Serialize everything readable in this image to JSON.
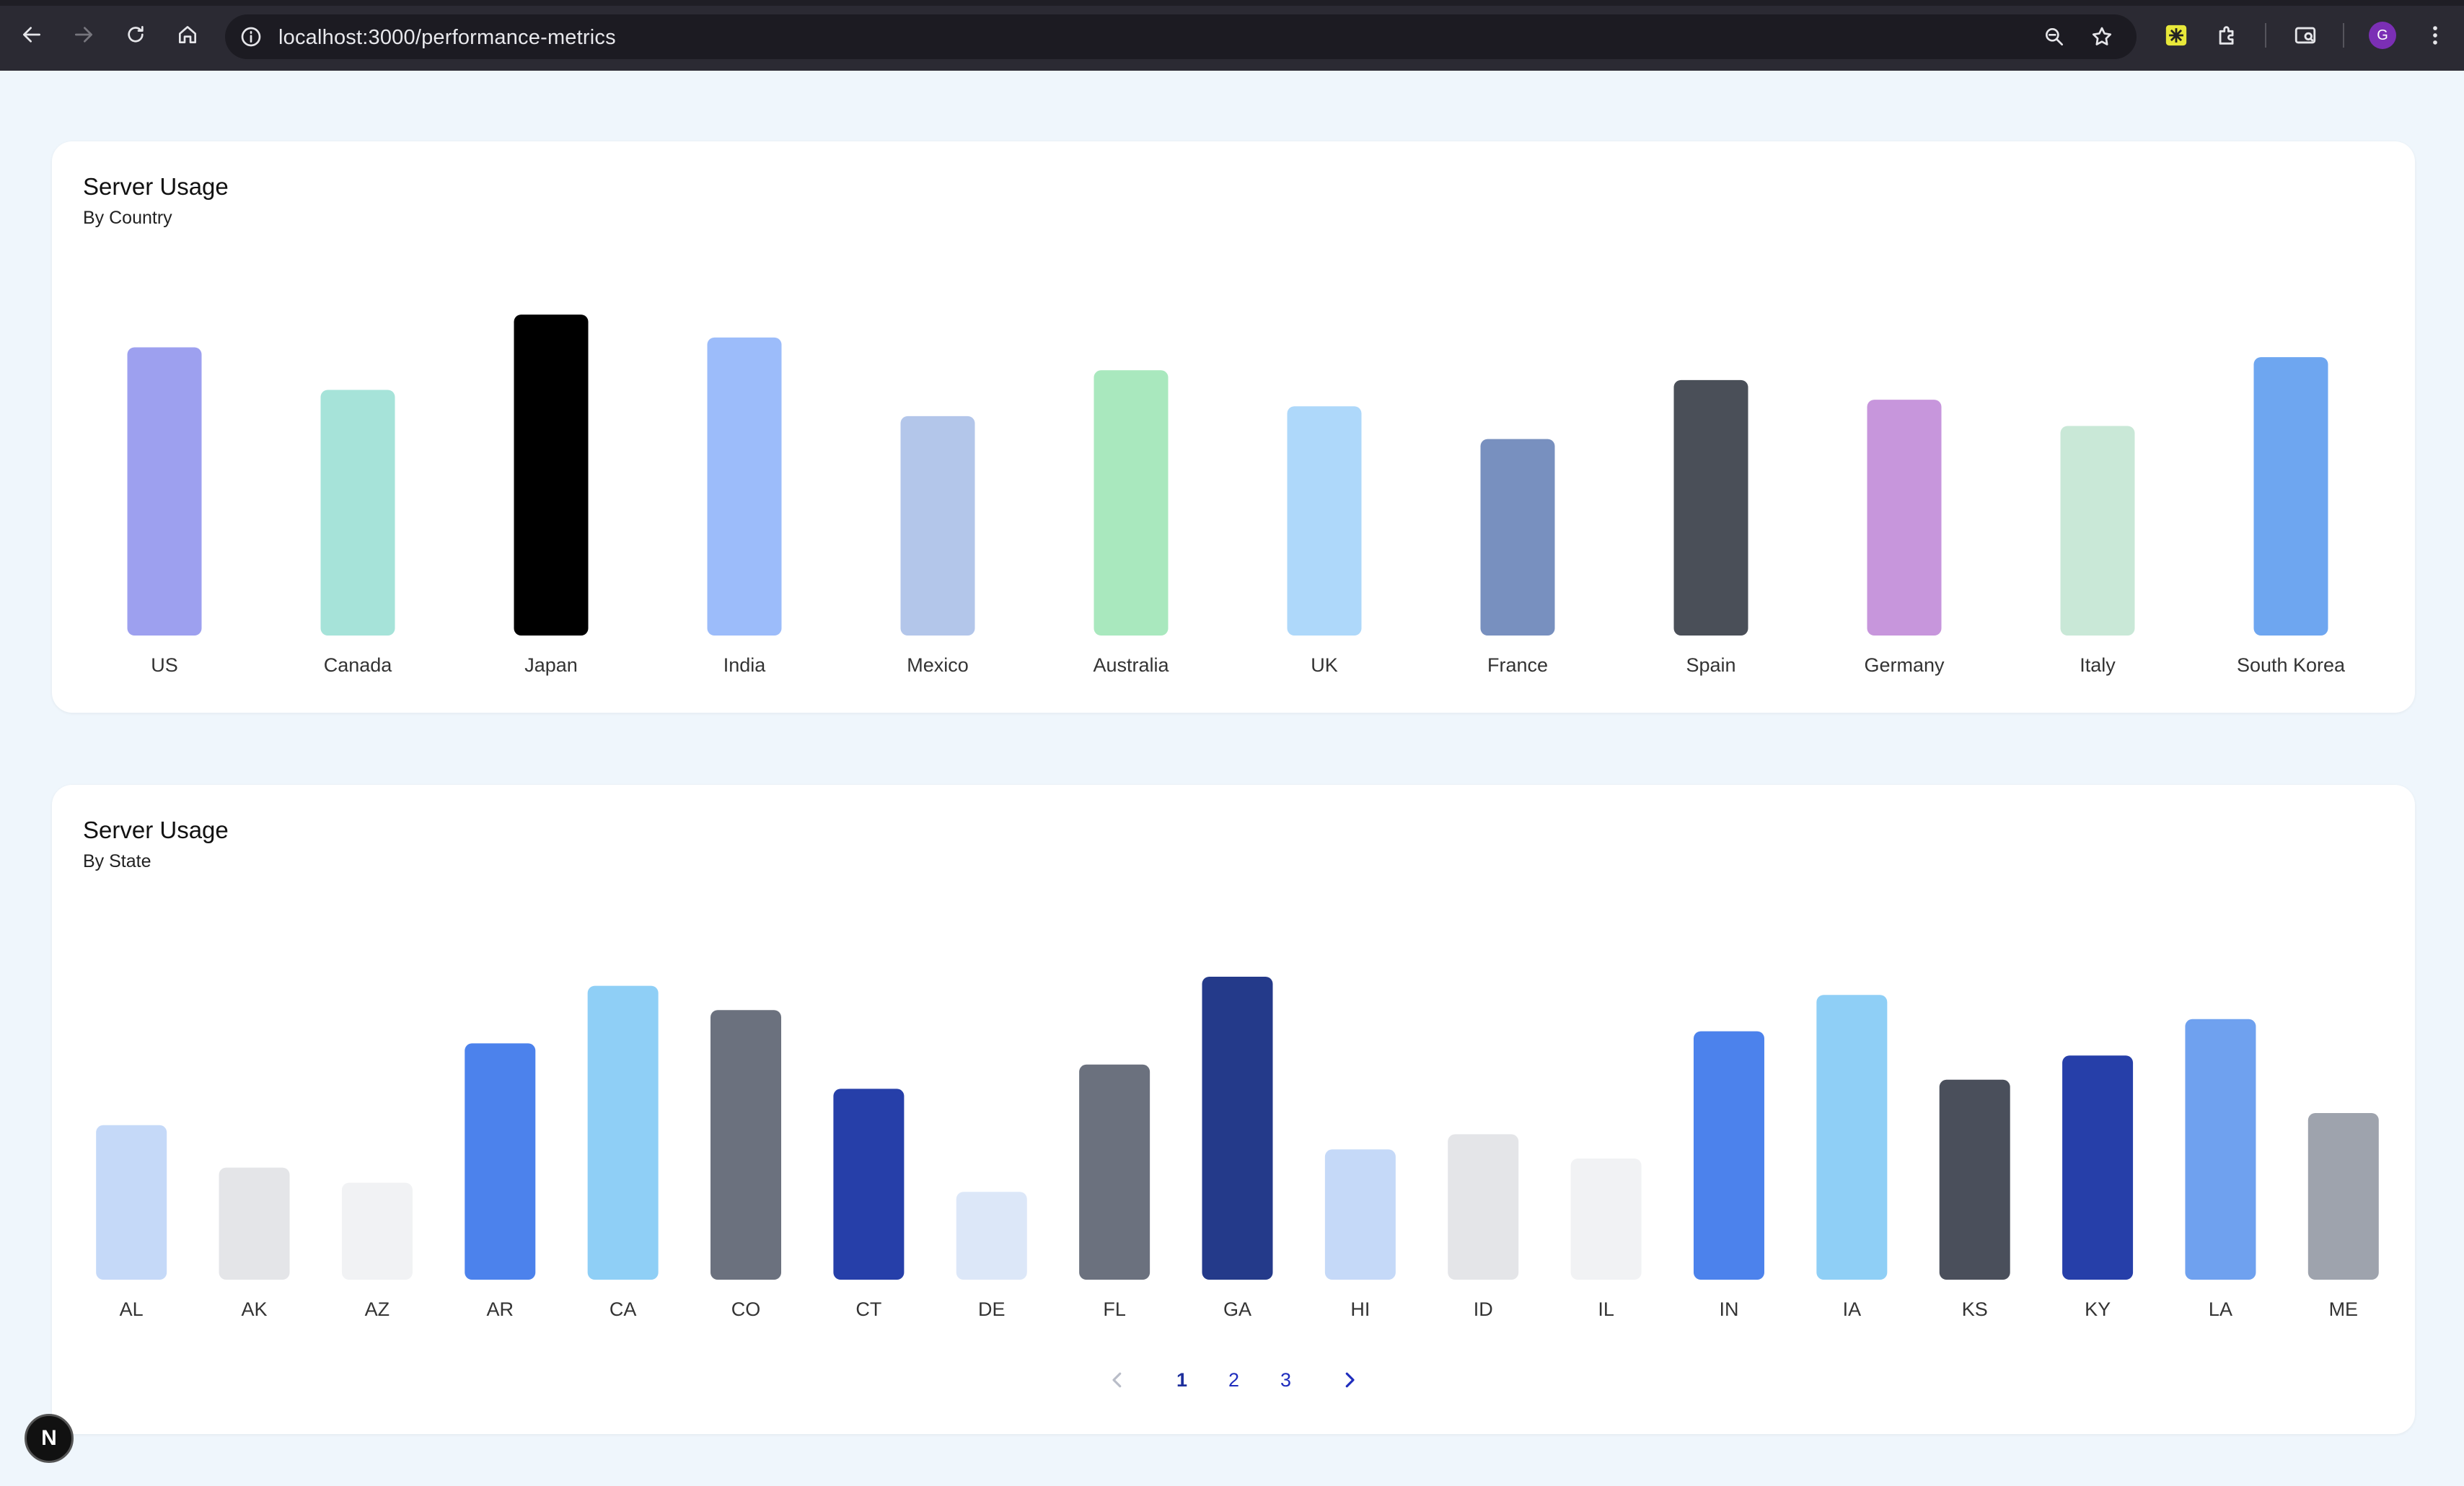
{
  "browser": {
    "url": "localhost:3000/performance-metrics",
    "profile_initial": "G",
    "icons": [
      "back-icon",
      "forward-icon",
      "reload-icon",
      "home-icon",
      "info-icon",
      "zoom-icon",
      "star-icon",
      "extension-icon",
      "puzzle-icon",
      "cast-icon",
      "menu-icon"
    ]
  },
  "country_card": {
    "title": "Server Usage",
    "subtitle": "By Country"
  },
  "state_card": {
    "title": "Server Usage",
    "subtitle": "By State"
  },
  "pagination": {
    "pages": [
      "1",
      "2",
      "3"
    ],
    "current": "1"
  },
  "badge": {
    "label": "N"
  },
  "chart_data": [
    {
      "type": "bar",
      "title": "Server Usage",
      "subtitle": "By Country",
      "categories": [
        "US",
        "Canada",
        "Japan",
        "India",
        "Mexico",
        "Australia",
        "UK",
        "France",
        "Spain",
        "Germany",
        "Italy",
        "South Korea"
      ],
      "values": [
        88,
        75,
        98,
        91,
        67,
        81,
        70,
        60,
        78,
        72,
        64,
        85
      ],
      "colors": [
        "#9da0ef",
        "#a6e3d9",
        "#000000",
        "#9cbcfa",
        "#b3c6ea",
        "#a9e8be",
        "#aed8fa",
        "#7890bf",
        "#4a4f58",
        "#c796dc",
        "#c9e8d7",
        "#6ea6f0"
      ],
      "ylim": [
        0,
        100
      ],
      "grid": false
    },
    {
      "type": "bar",
      "title": "Server Usage",
      "subtitle": "By State",
      "categories": [
        "AL",
        "AK",
        "AZ",
        "AR",
        "CA",
        "CO",
        "CT",
        "DE",
        "FL",
        "GA",
        "HI",
        "ID",
        "IL",
        "IN",
        "IA",
        "KS",
        "KY",
        "LA",
        "ME"
      ],
      "values": [
        51,
        37,
        32,
        78,
        97,
        89,
        63,
        29,
        71,
        100,
        43,
        48,
        40,
        82,
        94,
        66,
        74,
        86,
        55
      ],
      "colors": [
        "#c5d9f8",
        "#e4e5e8",
        "#f1f2f4",
        "#4c82ec",
        "#8fcff6",
        "#6b717e",
        "#263fa9",
        "#dce7f8",
        "#6b717e",
        "#243a8a",
        "#c5d9f8",
        "#e4e5e8",
        "#f1f2f4",
        "#4c82ec",
        "#8fcff6",
        "#4a4f5b",
        "#263fa9",
        "#6fa1ef",
        "#9ea3ad"
      ],
      "ylim": [
        0,
        100
      ],
      "grid": false
    }
  ]
}
